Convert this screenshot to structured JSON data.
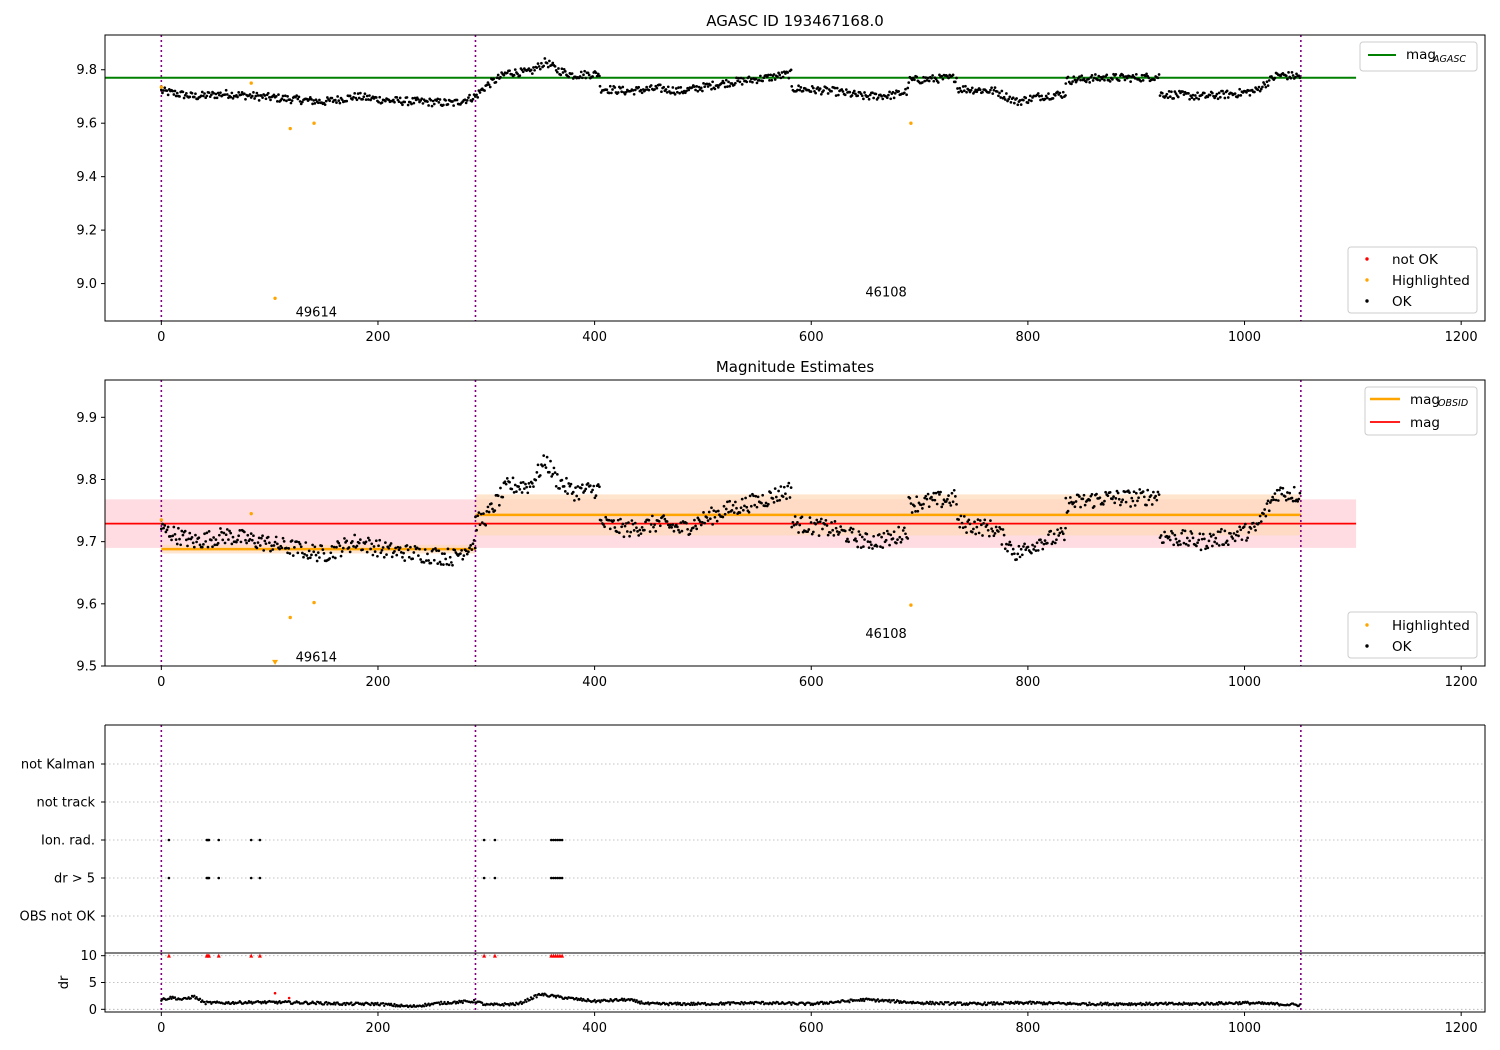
{
  "colors": {
    "ok": "#000000",
    "highlighted": "#ffa500",
    "not_ok": "#ff0000",
    "mag_agasc": "#008000",
    "mag_obsid": "#ffa500",
    "mag": "#ff0000",
    "band_mag": "#ffc0cb",
    "band_obsid": "#ffdab9",
    "obs_boundary": "#800080",
    "grid": "#b0b0b0"
  },
  "chart_data": [
    {
      "type": "scatter",
      "id": "top",
      "title": "AGASC ID 193467168.0",
      "xlim": [
        -52,
        1222
      ],
      "ylim": [
        8.86,
        9.93
      ],
      "xticks": [
        "0",
        "200",
        "400",
        "600",
        "800",
        "1000",
        "1200"
      ],
      "yticks": [
        "9.0",
        "9.2",
        "9.4",
        "9.6",
        "9.8"
      ],
      "hlines": [
        {
          "name": "mag_AGASC",
          "value": 9.77,
          "x": [
            -52,
            1103
          ]
        }
      ],
      "obs_boundaries": [
        0,
        290,
        1052
      ],
      "annotations": [
        {
          "text": "49614",
          "x": 124,
          "y": 8.895
        },
        {
          "text": "46108",
          "x": 650,
          "y": 8.97
        }
      ],
      "legends": [
        {
          "position": "upper right",
          "entries": [
            {
              "label": "mag",
              "sub": "AGASC"
            }
          ]
        },
        {
          "position": "lower right",
          "entries": [
            {
              "label": "not OK"
            },
            {
              "label": "Highlighted"
            },
            {
              "label": "OK"
            }
          ]
        }
      ],
      "ok_segments": [
        {
          "x0": 0,
          "x1": 290,
          "pts": [
            [
              0,
              9.72
            ],
            [
              30,
              9.7
            ],
            [
              60,
              9.71
            ],
            [
              90,
              9.7
            ],
            [
              120,
              9.69
            ],
            [
              150,
              9.68
            ],
            [
              180,
              9.7
            ],
            [
              210,
              9.685
            ],
            [
              240,
              9.68
            ],
            [
              270,
              9.675
            ],
            [
              290,
              9.7
            ]
          ]
        },
        {
          "x0": 290,
          "x1": 405,
          "pts": [
            [
              290,
              9.7
            ],
            [
              300,
              9.74
            ],
            [
              320,
              9.79
            ],
            [
              340,
              9.79
            ],
            [
              355,
              9.83
            ],
            [
              365,
              9.8
            ],
            [
              380,
              9.78
            ],
            [
              405,
              9.785
            ]
          ]
        },
        {
          "x0": 405,
          "x1": 582,
          "pts": [
            [
              405,
              9.73
            ],
            [
              430,
              9.72
            ],
            [
              460,
              9.73
            ],
            [
              480,
              9.72
            ],
            [
              520,
              9.75
            ],
            [
              560,
              9.77
            ],
            [
              582,
              9.785
            ]
          ]
        },
        {
          "x0": 582,
          "x1": 690,
          "pts": [
            [
              582,
              9.73
            ],
            [
              620,
              9.72
            ],
            [
              650,
              9.7
            ],
            [
              675,
              9.705
            ],
            [
              690,
              9.72
            ]
          ]
        },
        {
          "x0": 690,
          "x1": 735,
          "pts": [
            [
              690,
              9.76
            ],
            [
              710,
              9.765
            ],
            [
              735,
              9.77
            ]
          ]
        },
        {
          "x0": 735,
          "x1": 835,
          "pts": [
            [
              735,
              9.73
            ],
            [
              770,
              9.72
            ],
            [
              790,
              9.68
            ],
            [
              810,
              9.7
            ],
            [
              835,
              9.71
            ]
          ]
        },
        {
          "x0": 835,
          "x1": 922,
          "pts": [
            [
              835,
              9.76
            ],
            [
              870,
              9.77
            ],
            [
              900,
              9.77
            ],
            [
              922,
              9.775
            ]
          ]
        },
        {
          "x0": 922,
          "x1": 1052,
          "pts": [
            [
              922,
              9.71
            ],
            [
              960,
              9.7
            ],
            [
              990,
              9.71
            ],
            [
              1010,
              9.72
            ],
            [
              1030,
              9.78
            ],
            [
              1052,
              9.775
            ]
          ]
        }
      ],
      "highlighted": [
        [
          0,
          9.735
        ],
        [
          83,
          9.75
        ],
        [
          119,
          9.58
        ],
        [
          141,
          9.6
        ],
        [
          105,
          8.945
        ],
        [
          692,
          9.6
        ]
      ],
      "not_ok": []
    },
    {
      "type": "scatter",
      "id": "mid",
      "title": "Magnitude Estimates",
      "xlim": [
        -52,
        1222
      ],
      "ylim": [
        9.5,
        9.96
      ],
      "xticks": [
        "0",
        "200",
        "400",
        "600",
        "800",
        "1000",
        "1200"
      ],
      "yticks": [
        "9.5",
        "9.6",
        "9.7",
        "9.8",
        "9.9"
      ],
      "obs_boundaries": [
        0,
        290,
        1052
      ],
      "mag": {
        "value": 9.729,
        "band": [
          9.69,
          9.768
        ],
        "x": [
          -52,
          1103
        ]
      },
      "mag_obsid": [
        {
          "x": [
            0,
            290
          ],
          "value": 9.688,
          "band": [
            9.681,
            9.695
          ]
        },
        {
          "x": [
            290,
            1052
          ],
          "value": 9.743,
          "band": [
            9.71,
            9.776
          ]
        }
      ],
      "annotations": [
        {
          "text": "49614",
          "x": 124,
          "y": 9.515
        },
        {
          "text": "46108",
          "x": 650,
          "y": 9.553
        }
      ],
      "arrow_marker": {
        "x": 105,
        "y": 9.505
      },
      "legends": [
        {
          "position": "upper right",
          "entries": [
            {
              "label": "mag",
              "sub": "OBSID"
            },
            {
              "label": "mag"
            }
          ]
        },
        {
          "position": "lower right",
          "entries": [
            {
              "label": "Highlighted"
            },
            {
              "label": "OK"
            }
          ]
        }
      ],
      "ok_segments": [
        {
          "x0": 0,
          "x1": 290,
          "pts": [
            [
              0,
              9.72
            ],
            [
              30,
              9.7
            ],
            [
              60,
              9.71
            ],
            [
              90,
              9.7
            ],
            [
              120,
              9.69
            ],
            [
              150,
              9.68
            ],
            [
              180,
              9.7
            ],
            [
              210,
              9.685
            ],
            [
              240,
              9.68
            ],
            [
              270,
              9.675
            ],
            [
              290,
              9.7
            ]
          ]
        },
        {
          "x0": 290,
          "x1": 405,
          "pts": [
            [
              290,
              9.73
            ],
            [
              300,
              9.74
            ],
            [
              320,
              9.79
            ],
            [
              340,
              9.79
            ],
            [
              355,
              9.83
            ],
            [
              365,
              9.8
            ],
            [
              380,
              9.78
            ],
            [
              405,
              9.785
            ]
          ]
        },
        {
          "x0": 405,
          "x1": 582,
          "pts": [
            [
              405,
              9.73
            ],
            [
              430,
              9.72
            ],
            [
              460,
              9.73
            ],
            [
              480,
              9.72
            ],
            [
              520,
              9.75
            ],
            [
              560,
              9.77
            ],
            [
              582,
              9.785
            ]
          ]
        },
        {
          "x0": 582,
          "x1": 690,
          "pts": [
            [
              582,
              9.73
            ],
            [
              620,
              9.72
            ],
            [
              650,
              9.7
            ],
            [
              675,
              9.705
            ],
            [
              690,
              9.72
            ]
          ]
        },
        {
          "x0": 690,
          "x1": 735,
          "pts": [
            [
              690,
              9.76
            ],
            [
              710,
              9.765
            ],
            [
              735,
              9.77
            ]
          ]
        },
        {
          "x0": 735,
          "x1": 835,
          "pts": [
            [
              735,
              9.73
            ],
            [
              770,
              9.72
            ],
            [
              790,
              9.68
            ],
            [
              810,
              9.7
            ],
            [
              835,
              9.71
            ]
          ]
        },
        {
          "x0": 835,
          "x1": 922,
          "pts": [
            [
              835,
              9.76
            ],
            [
              870,
              9.77
            ],
            [
              900,
              9.77
            ],
            [
              922,
              9.775
            ]
          ]
        },
        {
          "x0": 922,
          "x1": 1052,
          "pts": [
            [
              922,
              9.71
            ],
            [
              960,
              9.7
            ],
            [
              990,
              9.71
            ],
            [
              1010,
              9.72
            ],
            [
              1030,
              9.78
            ],
            [
              1052,
              9.775
            ]
          ]
        }
      ],
      "highlighted": [
        [
          0,
          9.735
        ],
        [
          83,
          9.745
        ],
        [
          119,
          9.578
        ],
        [
          141,
          9.602
        ],
        [
          692,
          9.598
        ]
      ]
    },
    {
      "type": "scatter",
      "id": "flags",
      "xlim": [
        -52,
        1222
      ],
      "categories": [
        "not Kalman",
        "not track",
        "Ion. rad.",
        "dr > 5",
        "OBS not OK"
      ],
      "obs_boundaries": [
        0,
        290,
        1052
      ],
      "flag_points": {
        "Ion. rad.": [
          7,
          42,
          43,
          44,
          53,
          83,
          91,
          298,
          308,
          360,
          362,
          364,
          366,
          368,
          370
        ],
        "dr > 5": [
          7,
          42,
          43,
          44,
          53,
          83,
          91,
          298,
          308,
          360,
          362,
          364,
          366,
          368,
          370
        ]
      }
    },
    {
      "type": "scatter",
      "id": "dr",
      "ylabel": "dr",
      "xlim": [
        -52,
        1222
      ],
      "ylim": [
        -0.5,
        10.5
      ],
      "xticks": [
        "0",
        "200",
        "400",
        "600",
        "800",
        "1000",
        "1200"
      ],
      "yticks": [
        "0",
        "5",
        "10"
      ],
      "obs_boundaries": [
        0,
        290,
        1052
      ],
      "capped_value": 10,
      "capped_x": [
        7,
        42,
        43,
        44,
        53,
        83,
        91,
        298,
        308,
        360,
        362,
        364,
        366,
        368,
        370
      ],
      "red_points": [
        [
          105,
          3.0
        ],
        [
          118,
          2.1
        ]
      ],
      "dr_shape": [
        [
          0,
          1.8
        ],
        [
          10,
          2.2
        ],
        [
          20,
          1.8
        ],
        [
          30,
          2.4
        ],
        [
          40,
          1.2
        ],
        [
          60,
          1.2
        ],
        [
          80,
          1.3
        ],
        [
          110,
          1.3
        ],
        [
          140,
          1.2
        ],
        [
          170,
          1.0
        ],
        [
          200,
          1.0
        ],
        [
          230,
          0.5
        ],
        [
          260,
          1.2
        ],
        [
          290,
          1.5
        ],
        [
          300,
          0.8
        ],
        [
          330,
          1.0
        ],
        [
          350,
          2.8
        ],
        [
          370,
          2.2
        ],
        [
          400,
          1.5
        ],
        [
          430,
          1.8
        ],
        [
          450,
          1.0
        ],
        [
          500,
          1.0
        ],
        [
          550,
          1.2
        ],
        [
          600,
          1.0
        ],
        [
          650,
          1.8
        ],
        [
          700,
          1.2
        ],
        [
          750,
          1.0
        ],
        [
          800,
          1.2
        ],
        [
          850,
          1.0
        ],
        [
          900,
          1.0
        ],
        [
          950,
          1.0
        ],
        [
          1000,
          1.2
        ],
        [
          1052,
          0.8
        ]
      ]
    }
  ]
}
